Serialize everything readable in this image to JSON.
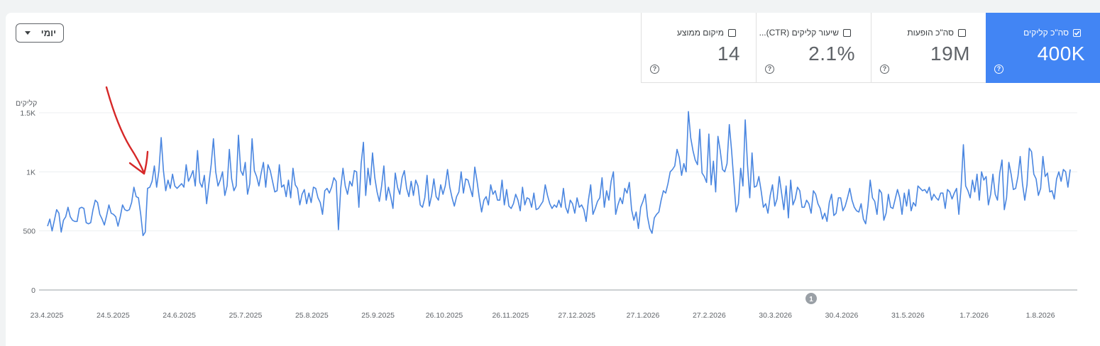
{
  "period": {
    "label": "יומי"
  },
  "metrics": [
    {
      "id": "clicks",
      "label": "סה\"כ קליקים",
      "value": "400K",
      "selected": true
    },
    {
      "id": "impressions",
      "label": "סה\"כ הופעות",
      "value": "19M",
      "selected": false
    },
    {
      "id": "ctr",
      "label": "שיעור קליקים (CTR)...",
      "value": "2.1%",
      "selected": false
    },
    {
      "id": "position",
      "label": "מיקום ממוצע",
      "value": "14",
      "selected": false
    }
  ],
  "colors": {
    "accent": "#4285f4",
    "line": "#4a86e0",
    "annotation_arrow": "#d62828"
  },
  "annotation_marker": "1",
  "chart_data": {
    "type": "line",
    "ylabel": "קליקים",
    "yticks": [
      "0",
      "500",
      "1K",
      "1.5K"
    ],
    "ytick_values": [
      0,
      500,
      1000,
      1500
    ],
    "ylim": [
      0,
      1500
    ],
    "xticks": [
      "23.4.2025",
      "24.5.2025",
      "24.6.2025",
      "25.7.2025",
      "25.8.2025",
      "25.9.2025",
      "26.10.2025",
      "26.11.2025",
      "27.12.2025",
      "27.1.2026",
      "27.2.2026",
      "30.3.2026",
      "30.4.2026",
      "31.5.2026",
      "1.7.2026",
      "1.8.2026"
    ],
    "grid": true,
    "x_start": "2025-04-23",
    "series": [
      {
        "color": "#4a86e0",
        "values": [
          540,
          600,
          500,
          590,
          680,
          650,
          490,
          590,
          620,
          700,
          620,
          590,
          580,
          580,
          690,
          700,
          690,
          570,
          560,
          570,
          680,
          760,
          740,
          640,
          600,
          550,
          630,
          720,
          650,
          640,
          620,
          540,
          620,
          720,
          680,
          670,
          680,
          740,
          870,
          790,
          780,
          640,
          460,
          490,
          860,
          870,
          920,
          1050,
          870,
          1010,
          1290,
          1010,
          840,
          930,
          860,
          980,
          880,
          860,
          880,
          900,
          870,
          1060,
          920,
          960,
          1010,
          880,
          1180,
          910,
          870,
          970,
          730,
          900,
          1060,
          1280,
          1000,
          880,
          930,
          1000,
          800,
          880,
          1190,
          940,
          840,
          880,
          1310,
          1010,
          970,
          1080,
          810,
          900,
          1280,
          1010,
          960,
          880,
          990,
          1080,
          870,
          1060,
          1010,
          920,
          830,
          840,
          1060,
          870,
          890,
          790,
          930,
          780,
          1030,
          890,
          860,
          720,
          810,
          850,
          730,
          820,
          740,
          870,
          860,
          780,
          740,
          640,
          840,
          860,
          820,
          870,
          950,
          920,
          510,
          860,
          1030,
          880,
          810,
          920,
          880,
          1010,
          1000,
          700,
          1070,
          1250,
          800,
          1030,
          890,
          1160,
          950,
          830,
          750,
          880,
          1050,
          760,
          870,
          790,
          690,
          990,
          870,
          810,
          950,
          1010,
          860,
          790,
          920,
          800,
          930,
          880,
          720,
          700,
          780,
          970,
          710,
          800,
          940,
          790,
          760,
          890,
          810,
          880,
          1020,
          870,
          780,
          710,
          790,
          830,
          1000,
          820,
          940,
          930,
          860,
          790,
          1040,
          920,
          780,
          660,
          760,
          790,
          720,
          890,
          810,
          840,
          760,
          760,
          930,
          720,
          850,
          710,
          690,
          730,
          810,
          760,
          670,
          870,
          720,
          780,
          770,
          700,
          820,
          680,
          690,
          720,
          750,
          890,
          800,
          730,
          690,
          720,
          700,
          760,
          700,
          860,
          700,
          650,
          760,
          730,
          650,
          780,
          700,
          720,
          680,
          580,
          760,
          890,
          640,
          690,
          750,
          780,
          950,
          700,
          840,
          760,
          920,
          1000,
          640,
          720,
          780,
          730,
          860,
          820,
          910,
          680,
          590,
          660,
          520,
          700,
          750,
          810,
          620,
          520,
          480,
          610,
          640,
          660,
          760,
          840,
          820,
          900,
          1000,
          1020,
          1050,
          1190,
          1120,
          970,
          1070,
          1000,
          1510,
          1290,
          1180,
          1100,
          1060,
          1360,
          990,
          960,
          910,
          1320,
          890,
          1090,
          830,
          1300,
          1180,
          1020,
          1000,
          1070,
          1400,
          1180,
          920,
          660,
          730,
          1030,
          880,
          1440,
          1060,
          780,
          1160,
          870,
          880,
          960,
          840,
          700,
          730,
          650,
          800,
          890,
          710,
          770,
          960,
          820,
          680,
          880,
          610,
          930,
          720,
          770,
          870,
          840,
          700,
          700,
          760,
          730,
          650,
          840,
          810,
          730,
          690,
          600,
          650,
          580,
          740,
          810,
          630,
          650,
          780,
          780,
          670,
          710,
          780,
          860,
          760,
          700,
          670,
          660,
          730,
          600,
          560,
          710,
          930,
          780,
          750,
          640,
          850,
          820,
          590,
          650,
          810,
          700,
          690,
          770,
          850,
          780,
          640,
          820,
          710,
          850,
          670,
          740,
          710,
          880,
          860,
          840,
          850,
          820,
          870,
          760,
          810,
          780,
          760,
          820,
          820,
          690,
          850,
          830,
          770,
          820,
          860,
          640,
          870,
          1230,
          880,
          840,
          780,
          930,
          830,
          980,
          760,
          1000,
          930,
          960,
          720,
          810,
          980,
          810,
          760,
          990,
          1100,
          680,
          780,
          1080,
          980,
          850,
          860,
          960,
          1130,
          900,
          760,
          890,
          1200,
          1170,
          980,
          940,
          800,
          860,
          1130,
          960,
          990,
          830,
          840,
          770,
          940,
          1000,
          920,
          1020,
          1000,
          870,
          1020
        ]
      }
    ]
  }
}
